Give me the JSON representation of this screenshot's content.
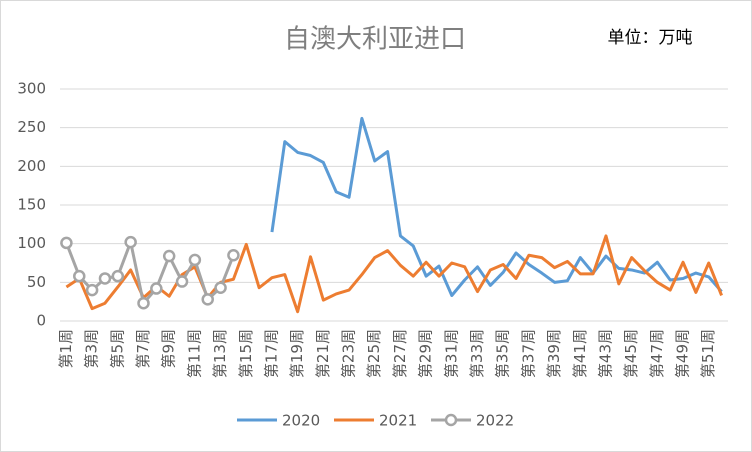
{
  "chart_data": {
    "type": "line",
    "title": "自澳大利亚进口",
    "annotation": "单位：万吨",
    "categories": [
      "第1周",
      null,
      "第3周",
      null,
      "第5周",
      null,
      "第7周",
      null,
      "第9周",
      null,
      "第11周",
      null,
      "第13周",
      null,
      "第15周",
      null,
      "第17周",
      null,
      "第19周",
      null,
      "第21周",
      null,
      "第23周",
      null,
      "第25周",
      null,
      "第27周",
      null,
      "第29周",
      null,
      "第31周",
      null,
      "第33周",
      null,
      "第35周",
      null,
      "第37周",
      null,
      "第39周",
      null,
      "第41周",
      null,
      "第43周",
      null,
      "第45周",
      null,
      "第47周",
      null,
      "第49周",
      null,
      "第51周",
      null
    ],
    "series": [
      {
        "name": "2020",
        "color": "#5b9bd5",
        "values": [
          null,
          null,
          null,
          null,
          null,
          null,
          null,
          null,
          null,
          null,
          null,
          null,
          null,
          null,
          null,
          null,
          115,
          232,
          218,
          214,
          205,
          167,
          160,
          262,
          207,
          219,
          110,
          97,
          58,
          71,
          33,
          53,
          70,
          46,
          63,
          88,
          73,
          62,
          50,
          52,
          82,
          62,
          84,
          68,
          66,
          62,
          76,
          53,
          55,
          62,
          57,
          38
        ]
      },
      {
        "name": "2021",
        "color": "#ed7d31",
        "values": [
          44,
          55,
          16,
          23,
          44,
          66,
          30,
          45,
          32,
          60,
          70,
          30,
          50,
          54,
          99,
          43,
          56,
          60,
          12,
          83,
          27,
          35,
          40,
          60,
          82,
          91,
          72,
          58,
          76,
          58,
          75,
          70,
          38,
          66,
          73,
          55,
          85,
          82,
          69,
          77,
          61,
          61,
          110,
          48,
          82,
          65,
          50,
          40,
          76,
          37,
          75,
          33
        ]
      },
      {
        "name": "2022",
        "color": "#a5a5a5",
        "marker": true,
        "values": [
          101,
          58,
          40,
          55,
          58,
          102,
          23,
          42,
          84,
          51,
          79,
          28,
          43,
          85,
          null,
          null,
          null,
          null,
          null,
          null,
          null,
          null,
          null,
          null,
          null,
          null,
          null,
          null,
          null,
          null,
          null,
          null,
          null,
          null,
          null,
          null,
          null,
          null,
          null,
          null,
          null,
          null,
          null,
          null,
          null,
          null,
          null,
          null,
          null,
          null,
          null,
          null
        ]
      }
    ],
    "ylim": [
      0,
      300
    ],
    "yticks": [
      0,
      50,
      100,
      150,
      200,
      250,
      300
    ],
    "grid": true,
    "legend": "bottom"
  }
}
